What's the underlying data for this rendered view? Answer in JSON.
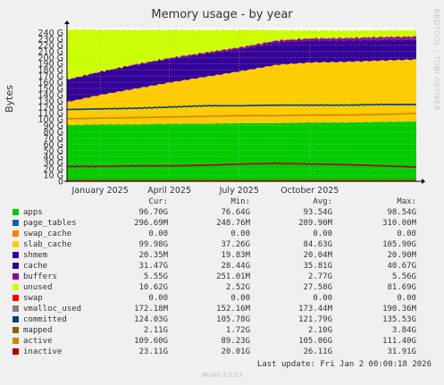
{
  "title": "Memory usage - by year",
  "ylabel": "Bytes",
  "watermark": "RRDTOOL / TOBI OETIKER",
  "footer": "Munin 2.0.57",
  "last_update": "Last update: Fri Jan  2 00:00:18 2026",
  "legend_headers": {
    "cur": "Cur:",
    "min": "Min:",
    "avg": "Avg:",
    "max": "Max:"
  },
  "legend": [
    {
      "name": "apps",
      "color": "#00CC00",
      "cur": "96.70G",
      "min": "76.64G",
      "avg": "93.54G",
      "max": "98.54G"
    },
    {
      "name": "page_tables",
      "color": "#0066B3",
      "cur": "296.69M",
      "min": "248.76M",
      "avg": "289.90M",
      "max": "310.00M"
    },
    {
      "name": "swap_cache",
      "color": "#FF8000",
      "cur": "0.00",
      "min": "0.00",
      "avg": "0.00",
      "max": "0.00"
    },
    {
      "name": "slab_cache",
      "color": "#FFCC00",
      "cur": "99.98G",
      "min": "37.26G",
      "avg": "84.63G",
      "max": "105.90G"
    },
    {
      "name": "shmem",
      "color": "#330099",
      "cur": "20.35M",
      "min": "19.83M",
      "avg": "20.04M",
      "max": "20.90M"
    },
    {
      "name": "cache",
      "color": "#330099",
      "cur": "31.47G",
      "min": "28.44G",
      "avg": "35.81G",
      "max": "40.67G"
    },
    {
      "name": "buffers",
      "color": "#990099",
      "cur": "5.55G",
      "min": "251.01M",
      "avg": "2.77G",
      "max": "5.56G"
    },
    {
      "name": "unused",
      "color": "#CCFF00",
      "cur": "10.62G",
      "min": "2.52G",
      "avg": "27.58G",
      "max": "81.69G"
    },
    {
      "name": "swap",
      "color": "#FF0000",
      "cur": "0.00",
      "min": "0.00",
      "avg": "0.00",
      "max": "0.00"
    },
    {
      "name": "vmalloc_used",
      "color": "#808080",
      "cur": "172.18M",
      "min": "152.16M",
      "avg": "173.44M",
      "max": "190.36M"
    },
    {
      "name": "committed",
      "color": "#004080",
      "cur": "124.03G",
      "min": "105.78G",
      "avg": "121.79G",
      "max": "135.53G"
    },
    {
      "name": "mapped",
      "color": "#8F6100",
      "cur": "2.11G",
      "min": "1.72G",
      "avg": "2.10G",
      "max": "3.84G"
    },
    {
      "name": "active",
      "color": "#CC8800",
      "cur": "109.60G",
      "min": "89.23G",
      "avg": "105.06G",
      "max": "111.40G"
    },
    {
      "name": "inactive",
      "color": "#B00000",
      "cur": "23.11G",
      "min": "20.01G",
      "avg": "26.11G",
      "max": "31.91G"
    }
  ],
  "chart_data": {
    "type": "area",
    "title": "Memory usage - by year",
    "ylabel": "Bytes",
    "y_unit": "G",
    "ylim": [
      0,
      248
    ],
    "yticks": [
      0,
      10,
      20,
      30,
      40,
      50,
      60,
      70,
      80,
      90,
      100,
      110,
      120,
      130,
      140,
      150,
      160,
      170,
      180,
      190,
      200,
      210,
      220,
      230,
      240
    ],
    "ytick_labels": [
      "0",
      "10 G",
      "20 G",
      "30 G",
      "40 G",
      "50 G",
      "60 G",
      "70 G",
      "80 G",
      "90 G",
      "100 G",
      "110 G",
      "120 G",
      "130 G",
      "140 G",
      "150 G",
      "160 G",
      "170 G",
      "180 G",
      "190 G",
      "200 G",
      "210 G",
      "220 G",
      "230 G",
      "240 G"
    ],
    "x_ticks": [
      "January 2025",
      "April 2025",
      "July 2025",
      "October 2025"
    ],
    "x_tick_pos": [
      0.095,
      0.293,
      0.493,
      0.695
    ],
    "x": [
      0,
      0.1,
      0.2,
      0.3,
      0.4,
      0.5,
      0.6,
      0.7,
      0.8,
      0.9,
      1.0
    ],
    "stacked": [
      {
        "name": "apps",
        "color": "#00CC00",
        "values": [
          91,
          92,
          92,
          93,
          93,
          94,
          94,
          95,
          95,
          96,
          96.7
        ]
      },
      {
        "name": "slab_cache",
        "color": "#FFCC00",
        "values": [
          37,
          48,
          58,
          67,
          76,
          84,
          94,
          97,
          98,
          99,
          99.98
        ]
      },
      {
        "name": "cache",
        "color": "#330099",
        "values": [
          36,
          37,
          38,
          38,
          37,
          36,
          36,
          35,
          34,
          33,
          31.5
        ]
      },
      {
        "name": "buffers",
        "color": "#990099",
        "values": [
          0.3,
          0.8,
          1.3,
          1.8,
          2.3,
          2.8,
          3.3,
          3.8,
          4.4,
          5.0,
          5.55
        ]
      },
      {
        "name": "unused",
        "color": "#CCFF00",
        "values": [
          81,
          67,
          55,
          45,
          36,
          28,
          17,
          13,
          12,
          11,
          10.6
        ]
      }
    ],
    "lines": [
      {
        "name": "committed",
        "color": "#004080",
        "values": [
          116,
          117,
          118,
          120,
          122,
          122,
          123,
          123,
          123,
          124,
          124
        ]
      },
      {
        "name": "active",
        "color": "#CC8800",
        "values": [
          101,
          102,
          103,
          104,
          105,
          106,
          106,
          107,
          107,
          108,
          109.6
        ]
      },
      {
        "name": "inactive",
        "color": "#B00000",
        "values": [
          24,
          24,
          25,
          25,
          26,
          28,
          29,
          28,
          27,
          25,
          23.1
        ]
      },
      {
        "name": "mapped",
        "color": "#8F6100",
        "values": [
          2,
          2,
          2,
          2,
          2,
          2,
          2,
          2,
          2,
          2,
          2.1
        ]
      }
    ]
  }
}
